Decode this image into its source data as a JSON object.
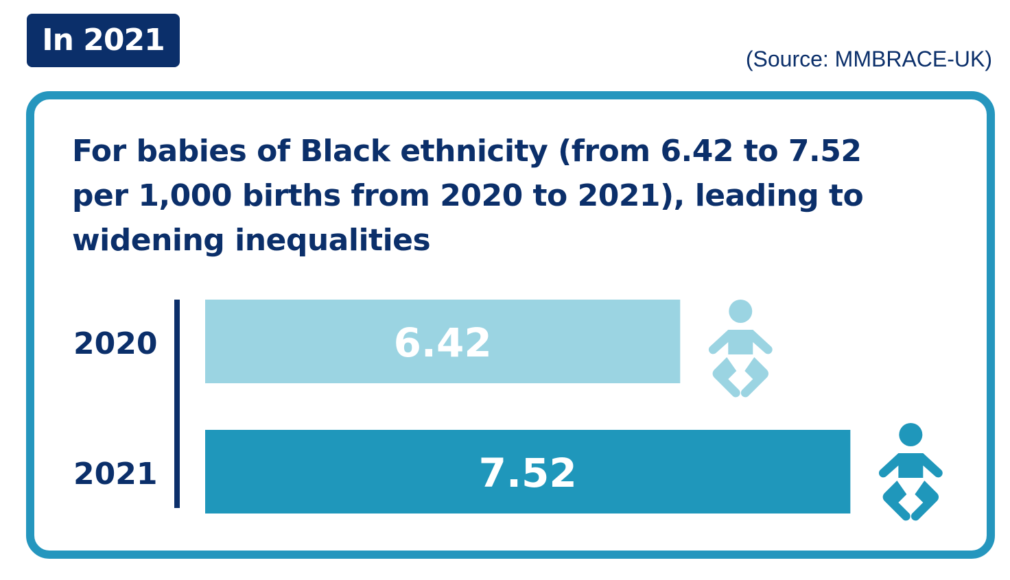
{
  "badge": "In 2021",
  "source": "(Source: MMBRACE-UK)",
  "chart_data": {
    "type": "bar",
    "orientation": "horizontal",
    "title": "For babies of Black ethnicity (from 6.42 to 7.52 per 1,000 births from 2020 to 2021), leading to widening inequalities",
    "categories": [
      "2020",
      "2021"
    ],
    "values": [
      6.42,
      7.52
    ],
    "data_labels": [
      "6.42",
      "7.52"
    ],
    "colors": [
      "#9bd4e2",
      "#1f97bb"
    ],
    "icon": "baby-icon",
    "grid": false
  },
  "colors": {
    "navy": "#0b2f6a",
    "frame": "#2596be"
  }
}
